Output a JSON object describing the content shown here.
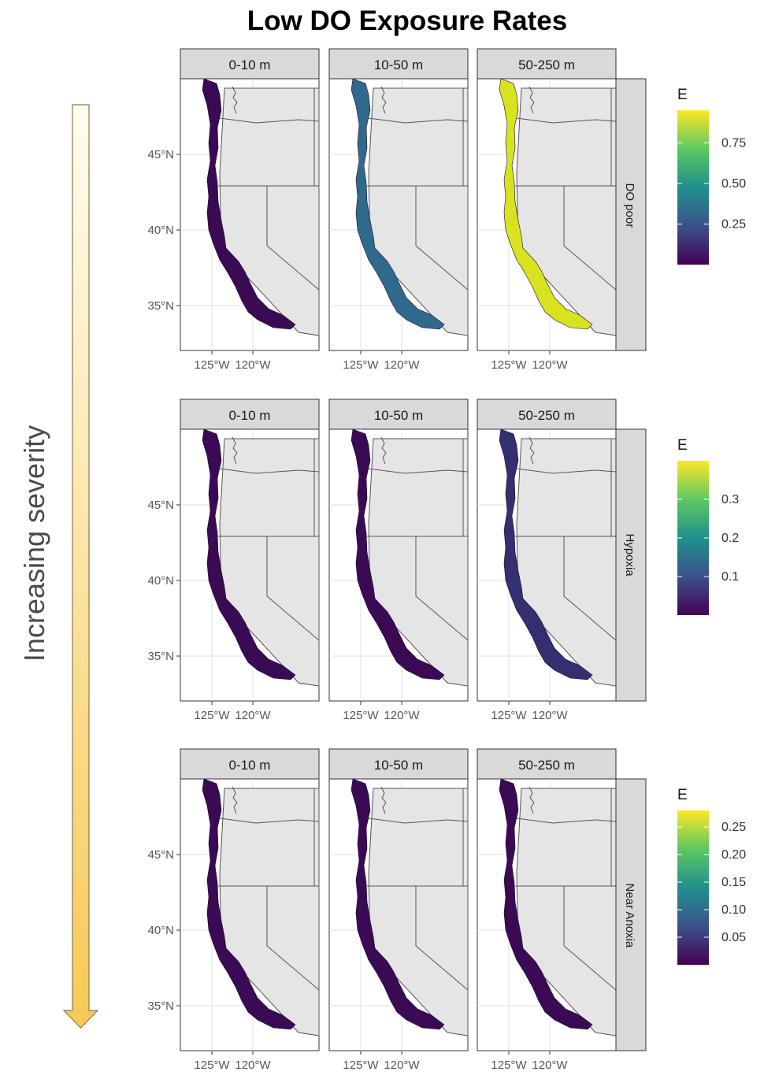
{
  "title": "Low DO Exposure Rates",
  "side_label": "Increasing severity",
  "arrow_colors": {
    "top": "#fffdf0",
    "bottom": "#f7c955"
  },
  "depth_bins": [
    "0-10 m",
    "10-50 m",
    "50-250 m"
  ],
  "rows": [
    {
      "label": "DO poor",
      "legend_title": "E",
      "legend_ticks": [
        "0.75",
        "0.50",
        "0.25"
      ],
      "legend_tick_values": [
        0.75,
        0.5,
        0.25
      ],
      "legend_range": [
        0,
        0.95
      ],
      "panel_fill": [
        "#3b0a54",
        "#2f6a8c",
        "#d8e21f"
      ]
    },
    {
      "label": "Hypoxia",
      "legend_title": "E",
      "legend_ticks": [
        "0.3",
        "0.2",
        "0.1"
      ],
      "legend_tick_values": [
        0.3,
        0.2,
        0.1
      ],
      "legend_range": [
        0,
        0.4
      ],
      "panel_fill": [
        "#3b0a54",
        "#3b0a54",
        "#33306f"
      ]
    },
    {
      "label": "Near Anoxia",
      "legend_title": "E",
      "legend_ticks": [
        "0.25",
        "0.20",
        "0.15",
        "0.10",
        "0.05"
      ],
      "legend_tick_values": [
        0.25,
        0.2,
        0.15,
        0.1,
        0.05
      ],
      "legend_range": [
        0,
        0.28
      ],
      "panel_fill": [
        "#3b0a54",
        "#3b0a54",
        "#3b0a54"
      ]
    }
  ],
  "lat_labels": [
    "45°N",
    "40°N",
    "35°N"
  ],
  "lon_labels": [
    "125°W",
    "120°W"
  ],
  "colors": {
    "panel_bg": "#ebebeb",
    "land": "#e5e5e5",
    "strip": "#d9d9d9",
    "viridis": [
      "#440154",
      "#3b528b",
      "#21908c",
      "#5dc863",
      "#fde725"
    ]
  }
}
